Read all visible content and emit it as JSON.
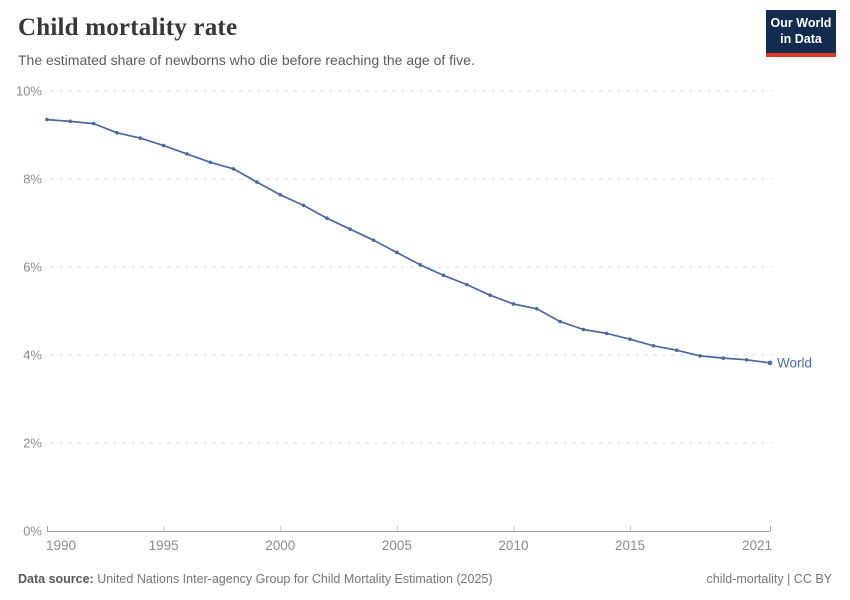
{
  "header": {
    "title": "Child mortality rate",
    "subtitle": "The estimated share of newborns who die before reaching the age of five.",
    "logo": {
      "line1": "Our World",
      "line2": "in Data"
    }
  },
  "chart_data": {
    "type": "line",
    "title": "Child mortality rate",
    "xlabel": "",
    "ylabel": "",
    "xlim": [
      1990,
      2021
    ],
    "ylim": [
      0,
      10
    ],
    "grid": "horizontal-dashed",
    "legend_position": "end-of-line-label",
    "x_ticks": [
      1990,
      1995,
      2000,
      2005,
      2010,
      2015,
      2021
    ],
    "x_tick_labels": [
      "1990",
      "1995",
      "2000",
      "2005",
      "2010",
      "2015",
      "2021"
    ],
    "y_ticks": [
      0,
      2,
      4,
      6,
      8,
      10
    ],
    "y_tick_labels": [
      "0%",
      "2%",
      "4%",
      "6%",
      "8%",
      "10%"
    ],
    "x": [
      1990,
      1991,
      1992,
      1993,
      1994,
      1995,
      1996,
      1997,
      1998,
      1999,
      2000,
      2001,
      2002,
      2003,
      2004,
      2005,
      2006,
      2007,
      2008,
      2009,
      2010,
      2011,
      2012,
      2013,
      2014,
      2015,
      2016,
      2017,
      2018,
      2019,
      2020,
      2021
    ],
    "series": [
      {
        "name": "World",
        "color": "#4C6A9C",
        "values": [
          9.35,
          9.31,
          9.26,
          9.05,
          8.93,
          8.76,
          8.57,
          8.38,
          8.23,
          7.93,
          7.64,
          7.4,
          7.11,
          6.86,
          6.61,
          6.33,
          6.05,
          5.81,
          5.6,
          5.36,
          5.16,
          5.05,
          4.76,
          4.58,
          4.49,
          4.36,
          4.21,
          4.11,
          3.98,
          3.93,
          3.89,
          3.82
        ]
      }
    ]
  },
  "colors": {
    "line": "#4C6A9C",
    "grid": "#dcdcdc",
    "axis": "#a0a0a0",
    "minor_tick": "#c9c9c9",
    "tick_text": "#8a8a8a",
    "logo_bg": "#122b4f",
    "logo_accent": "#d93a2b"
  },
  "footer": {
    "source_label": "Data source:",
    "source_text": " United Nations Inter-agency Group for Child Mortality Estimation (2025)",
    "right_text": "child-mortality | CC BY"
  }
}
